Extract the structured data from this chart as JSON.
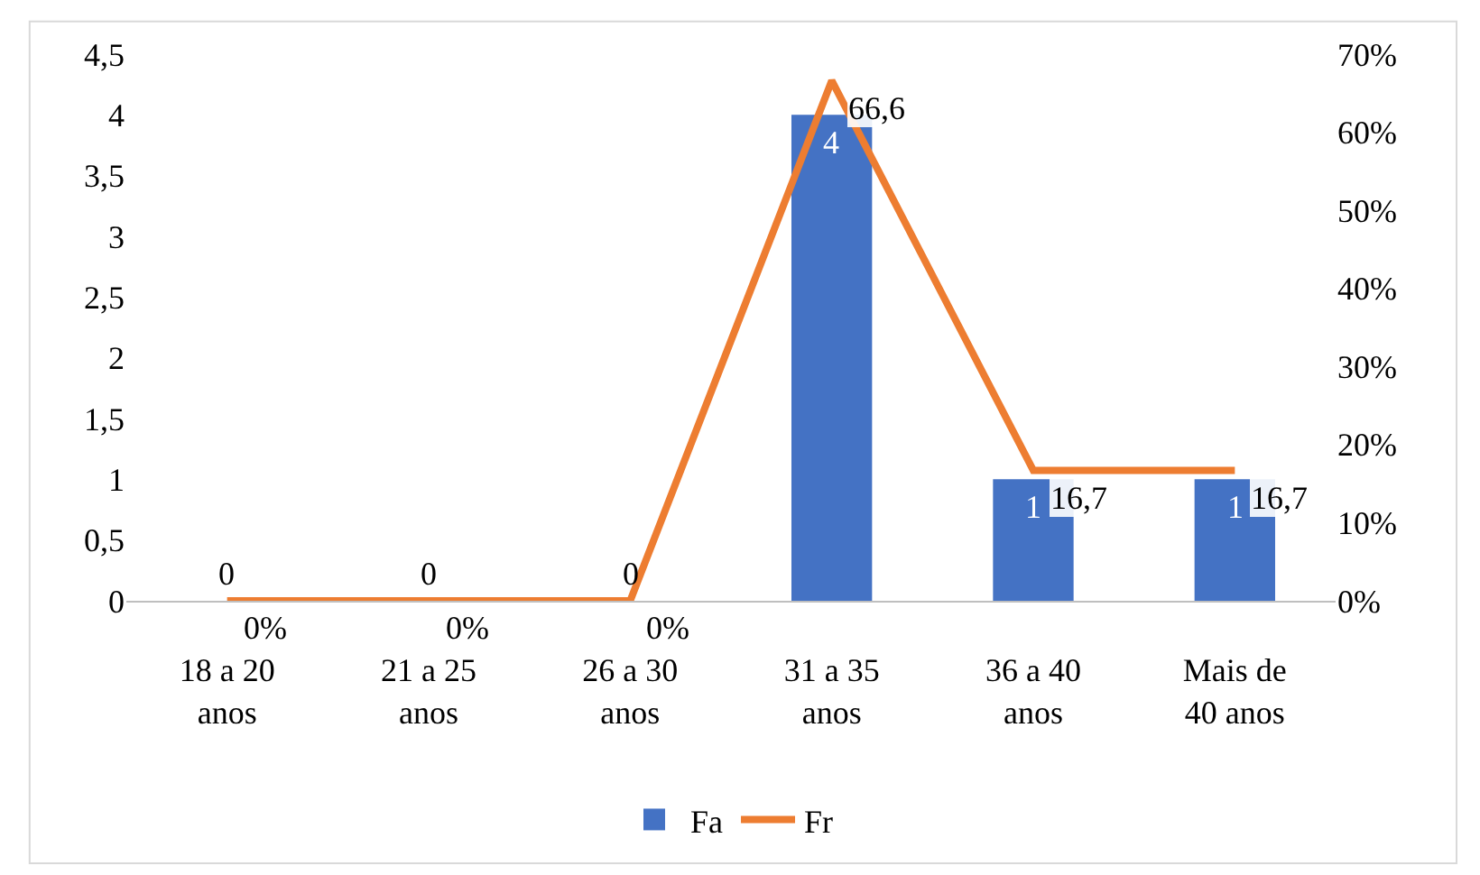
{
  "chart_data": {
    "type": "bar",
    "categories": [
      "18 a 20 anos",
      "21 a 25 anos",
      "26 a 30 anos",
      "31 a 35 anos",
      "36 a 40 anos",
      "Mais de 40 anos"
    ],
    "series": [
      {
        "name": "Fa",
        "color": "#4472c4",
        "values": [
          0,
          0,
          0,
          4,
          1,
          1
        ],
        "value_labels": [
          "0",
          "0",
          "0",
          "4",
          "1",
          "1"
        ]
      },
      {
        "name": "Fr",
        "type": "line",
        "axis": "y2",
        "color": "#ed7d31",
        "values": [
          0,
          0,
          0,
          66.6,
          16.7,
          16.7
        ],
        "value_labels": [
          "0%",
          "0%",
          "0%",
          "66,6",
          "16,7",
          "16,7"
        ]
      }
    ],
    "ylim": [
      0,
      4.5
    ],
    "yticks": [
      0,
      {
        "value": 0.5,
        "label": "0,5"
      },
      1,
      {
        "value": 1.5,
        "label": "1,5"
      },
      2,
      {
        "value": 2.5,
        "label": "2,5"
      },
      3,
      {
        "value": 3.5,
        "label": "3,5"
      },
      4,
      {
        "value": 4.5,
        "label": "4,5"
      }
    ],
    "y2lim": [
      0,
      70
    ],
    "y2ticks": [
      {
        "value": 0,
        "label": "0%"
      },
      {
        "value": 10,
        "label": "10%"
      },
      {
        "value": 20,
        "label": "20%"
      },
      {
        "value": 30,
        "label": "30%"
      },
      {
        "value": 40,
        "label": "40%"
      },
      {
        "value": 50,
        "label": "50%"
      },
      {
        "value": 60,
        "label": "60%"
      },
      {
        "value": 70,
        "label": "70%"
      }
    ],
    "grid": false,
    "legend": "bottom",
    "marker": "none",
    "line_style": "solid"
  }
}
